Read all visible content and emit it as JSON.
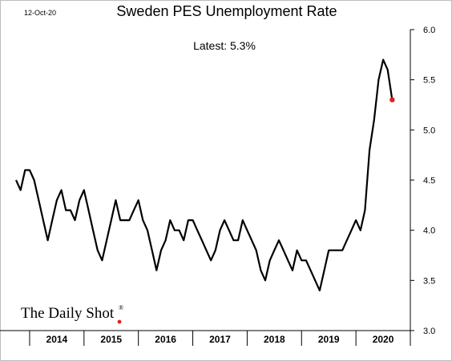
{
  "date_stamp": "12-Oct-20",
  "brand": {
    "text": "The Daily Shot",
    "registered": "®",
    "dot_color": "#e02020"
  },
  "chart_data": {
    "type": "line",
    "title": "Sweden PES Unemployment Rate",
    "annotation": "Latest:  5.3%",
    "xlabel": "",
    "ylabel": "",
    "ylim": [
      3.0,
      6.0
    ],
    "yticks": [
      "3.0",
      "3.5",
      "4.0",
      "4.5",
      "5.0",
      "5.5",
      "6.0"
    ],
    "year_labels": [
      "2014",
      "2015",
      "2016",
      "2017",
      "2018",
      "2019",
      "2020"
    ],
    "grid": false,
    "line_color": "#000000",
    "latest_marker_color": "#e02020",
    "series": [
      {
        "x": [
          "2013-10",
          "2013-11",
          "2013-12",
          "2014-01",
          "2014-02",
          "2014-03",
          "2014-04",
          "2014-05",
          "2014-06",
          "2014-07",
          "2014-08",
          "2014-09",
          "2014-10",
          "2014-11",
          "2014-12",
          "2015-01",
          "2015-02",
          "2015-03",
          "2015-04",
          "2015-05",
          "2015-06",
          "2015-07",
          "2015-08",
          "2015-09",
          "2015-10",
          "2015-11",
          "2015-12",
          "2016-01",
          "2016-02",
          "2016-03",
          "2016-04",
          "2016-05",
          "2016-06",
          "2016-07",
          "2016-08",
          "2016-09",
          "2016-10",
          "2016-11",
          "2016-12",
          "2017-01",
          "2017-02",
          "2017-03",
          "2017-04",
          "2017-05",
          "2017-06",
          "2017-07",
          "2017-08",
          "2017-09",
          "2017-10",
          "2017-11",
          "2017-12",
          "2018-01",
          "2018-02",
          "2018-03",
          "2018-04",
          "2018-05",
          "2018-06",
          "2018-07",
          "2018-08",
          "2018-09",
          "2018-10",
          "2018-11",
          "2018-12",
          "2019-01",
          "2019-02",
          "2019-03",
          "2019-04",
          "2019-05",
          "2019-06",
          "2019-07",
          "2019-08",
          "2019-09",
          "2019-10",
          "2019-11",
          "2019-12",
          "2020-01",
          "2020-02",
          "2020-03",
          "2020-04",
          "2020-05",
          "2020-06",
          "2020-07",
          "2020-08",
          "2020-09"
        ],
        "values": [
          4.5,
          4.4,
          4.6,
          4.6,
          4.5,
          4.3,
          4.1,
          3.9,
          4.1,
          4.3,
          4.4,
          4.2,
          4.2,
          4.1,
          4.3,
          4.4,
          4.2,
          4.0,
          3.8,
          3.7,
          3.9,
          4.1,
          4.3,
          4.1,
          4.1,
          4.1,
          4.2,
          4.3,
          4.1,
          4.0,
          3.8,
          3.6,
          3.8,
          3.9,
          4.1,
          4.0,
          4.0,
          3.9,
          4.1,
          4.1,
          4.0,
          3.9,
          3.8,
          3.7,
          3.8,
          4.0,
          4.1,
          4.0,
          3.9,
          3.9,
          4.1,
          4.0,
          3.9,
          3.8,
          3.6,
          3.5,
          3.7,
          3.8,
          3.9,
          3.8,
          3.7,
          3.6,
          3.8,
          3.7,
          3.7,
          3.6,
          3.5,
          3.4,
          3.6,
          3.8,
          3.8,
          3.8,
          3.8,
          3.9,
          4.0,
          4.1,
          4.0,
          4.2,
          4.8,
          5.1,
          5.5,
          5.7,
          5.6,
          5.3
        ]
      }
    ]
  }
}
